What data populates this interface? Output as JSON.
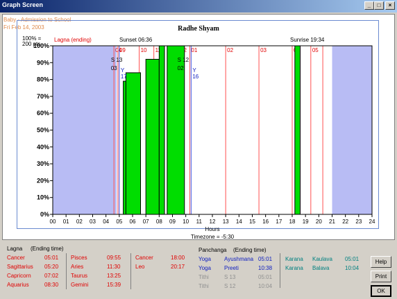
{
  "window": {
    "title": "Graph Screen",
    "minimize": "_",
    "maximize": "□",
    "close": "×"
  },
  "header": {
    "line1": "Baby - Admission to School",
    "line2": "Fri Feb 14, 2003",
    "name": "Radhe Shyam"
  },
  "chart_data": {
    "type": "bar",
    "scale_note": "100% =\n200 pts.",
    "lagna_ending_label": "Lagna (ending)",
    "sunset": "Sunset 06:36",
    "sunrise": "Sunrise 19:34",
    "xlabel": "Hours",
    "timezone": "Timezone = -5:30",
    "xlim": [
      0,
      24
    ],
    "ylim": [
      0,
      100
    ],
    "x_ticks": [
      "00",
      "01",
      "02",
      "03",
      "04",
      "05",
      "06",
      "07",
      "08",
      "09",
      "10",
      "11",
      "12",
      "13",
      "14",
      "15",
      "16",
      "17",
      "18",
      "19",
      "20",
      "21",
      "22",
      "23",
      "24"
    ],
    "y_ticks": [
      "0%",
      "10%",
      "20%",
      "30%",
      "40%",
      "50%",
      "60%",
      "70%",
      "80%",
      "90%",
      "100%"
    ],
    "night_shading": [
      [
        0,
        4.8
      ],
      [
        21,
        24
      ]
    ],
    "bars": [
      {
        "x0": 5.3,
        "x1": 5.5,
        "value": 79
      },
      {
        "x0": 5.5,
        "x1": 6.6,
        "value": 84
      },
      {
        "x0": 7.0,
        "x1": 8.0,
        "value": 92
      },
      {
        "x0": 8.0,
        "x1": 8.4,
        "value": 100
      },
      {
        "x0": 8.6,
        "x1": 9.9,
        "value": 100
      },
      {
        "x0": 18.2,
        "x1": 18.6,
        "value": 100
      }
    ],
    "lagna_lines": [
      {
        "x": 4.6,
        "label": "04"
      },
      {
        "x": 4.9,
        "label": "09"
      },
      {
        "x": 6.5,
        "label": "10"
      },
      {
        "x": 7.6,
        "label": "11"
      },
      {
        "x": 9.5,
        "label": "12"
      },
      {
        "x": 10.3,
        "label": "01"
      },
      {
        "x": 13.0,
        "label": "02"
      },
      {
        "x": 15.5,
        "label": "03"
      },
      {
        "x": 18.0,
        "label": "04"
      },
      {
        "x": 19.4,
        "label": "05"
      },
      {
        "x": 20.3,
        "label": ""
      }
    ],
    "blue_lines": [
      {
        "x": 5.0,
        "label": "Y\n17"
      },
      {
        "x": 10.4,
        "label": "Y\n16"
      }
    ],
    "tithi_lines": [
      {
        "x": 5.0,
        "label": "S 13\n03"
      },
      {
        "x": 10.0,
        "label": "S 12\n02"
      }
    ]
  },
  "lagna_table": {
    "title": "Lagna",
    "subtitle": "(Ending time)",
    "col1": [
      {
        "sign": "Cancer",
        "time": "05:01"
      },
      {
        "sign": "Sagittarius",
        "time": "05:20"
      },
      {
        "sign": "Capricorn",
        "time": "07:02"
      },
      {
        "sign": "Aquarius",
        "time": "08:30"
      }
    ],
    "col2": [
      {
        "sign": "Pisces",
        "time": "09:55"
      },
      {
        "sign": "Aries",
        "time": "11:30"
      },
      {
        "sign": "Taurus",
        "time": "13:25"
      },
      {
        "sign": "Gemini",
        "time": "15:39"
      }
    ],
    "col3": [
      {
        "sign": "Cancer",
        "time": "18:00"
      },
      {
        "sign": "Leo",
        "time": "20:17"
      }
    ]
  },
  "panchanga": {
    "title": "Panchanga",
    "subtitle": "(Ending time)",
    "rows": [
      {
        "kind": "Yoga",
        "name": "Ayushmana",
        "time": "05:01"
      },
      {
        "kind": "Yoga",
        "name": "Preeti",
        "time": "10:38"
      },
      {
        "kind": "Tithi",
        "name": "S 13",
        "time": "05:01"
      },
      {
        "kind": "Tithi",
        "name": "S 12",
        "time": "10:04"
      }
    ],
    "karana": [
      {
        "kind": "Karana",
        "name": "Kaulava",
        "time": "05:01"
      },
      {
        "kind": "Karana",
        "name": "Balava",
        "time": "10:04"
      }
    ]
  },
  "buttons": {
    "help": "Help",
    "print": "Print",
    "ok": "OK"
  }
}
